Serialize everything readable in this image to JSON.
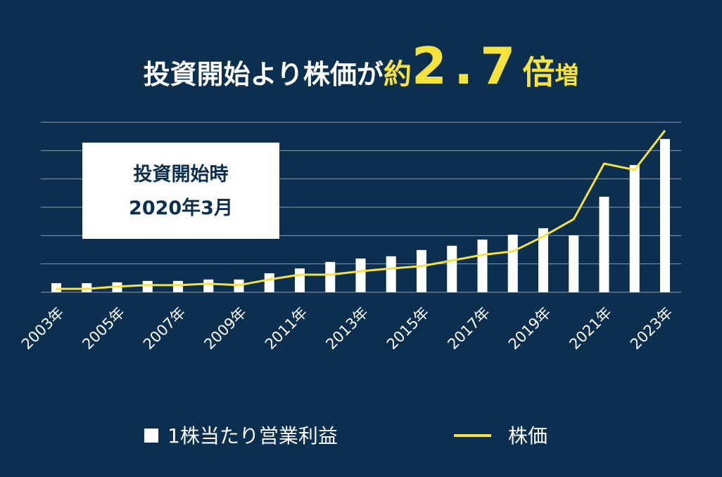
{
  "chart_data": {
    "type": "bar_line",
    "title_parts": [
      "投資開始より株価が",
      "約",
      "2.7",
      "倍",
      "増"
    ],
    "annotation": [
      "投資開始時",
      "2020年3月"
    ],
    "categories": [
      "2003年",
      null,
      "2005年",
      null,
      "2007年",
      null,
      "2009年",
      null,
      "2011年",
      null,
      "2013年",
      null,
      "2015年",
      null,
      "2017年",
      null,
      "2019年",
      null,
      "2021年",
      null,
      "2023年"
    ],
    "series": [
      {
        "name": "1株当たり営業利益",
        "type": "bar",
        "color": "#ffffff",
        "values": [
          0.32,
          0.32,
          0.35,
          0.4,
          0.4,
          0.45,
          0.45,
          0.67,
          0.84,
          1.07,
          1.19,
          1.27,
          1.49,
          1.64,
          1.86,
          2.03,
          2.26,
          2.01,
          3.37,
          4.49,
          5.41
        ]
      },
      {
        "name": "株価",
        "type": "line",
        "color": "#f5e23c",
        "values": [
          0.12,
          0.12,
          0.2,
          0.25,
          0.25,
          0.3,
          0.25,
          0.45,
          0.62,
          0.62,
          0.74,
          0.84,
          0.92,
          1.12,
          1.32,
          1.44,
          1.97,
          2.58,
          4.54,
          4.32,
          5.71
        ]
      }
    ],
    "ylim": [
      0,
      6
    ],
    "yticks": [
      0,
      1,
      2,
      3,
      4,
      5,
      6
    ],
    "grid": true
  }
}
